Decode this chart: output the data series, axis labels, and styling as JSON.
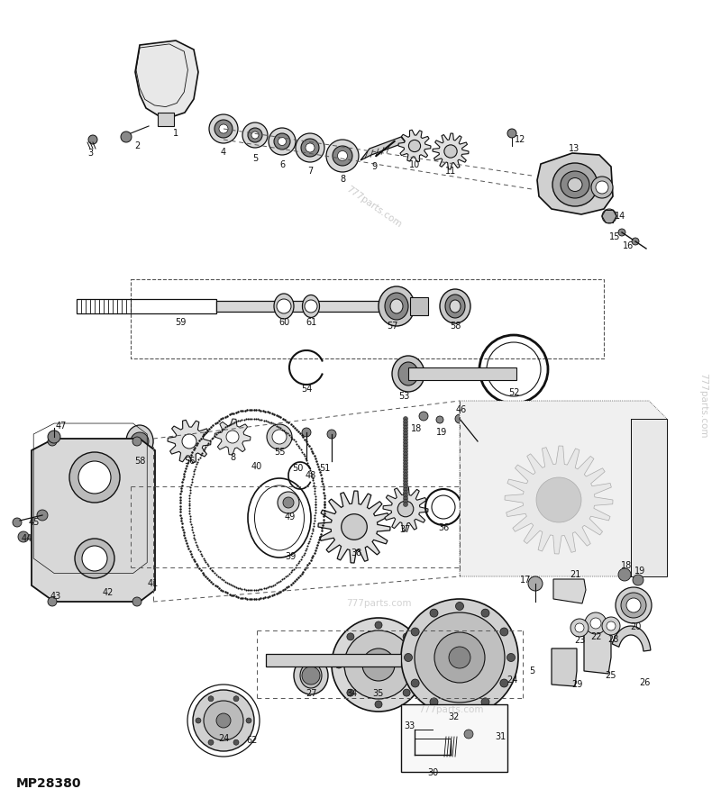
{
  "bg_color": "#ffffff",
  "line_color": "#111111",
  "part_number": "MP28380",
  "fig_width": 8.0,
  "fig_height": 8.86,
  "watermark_diag": "777parts.com",
  "watermark_side": "777parts.com",
  "watermark_mid": "777parts.com"
}
